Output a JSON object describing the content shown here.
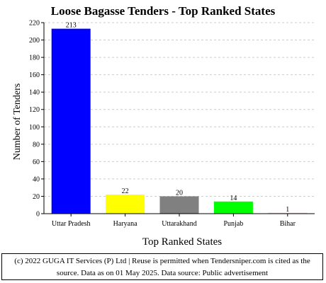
{
  "chart_data": {
    "type": "bar",
    "title": "Loose Bagasse Tenders - Top Ranked States",
    "xlabel": "Top Ranked States",
    "ylabel": "Number of Tenders",
    "categories": [
      "Uttar Pradesh",
      "Haryana",
      "Uttarakhand",
      "Punjab",
      "Bihar"
    ],
    "values": [
      213,
      22,
      20,
      14,
      1
    ],
    "colors": [
      "#0000ff",
      "#ffff00",
      "#808080",
      "#00ff00",
      "#ffc0cb"
    ],
    "ylim": [
      0,
      220
    ],
    "yticks": [
      0,
      20,
      40,
      60,
      80,
      100,
      120,
      140,
      160,
      180,
      200,
      220
    ],
    "grid": true,
    "show_value_labels": true
  },
  "footer": {
    "line1": "(c) 2022 GUGA IT Services (P) Ltd | Reuse is permitted when Tendersniper.com is cited as the",
    "line2": "source. Data as on 01 May 2025. Data source: Public advertisement"
  }
}
